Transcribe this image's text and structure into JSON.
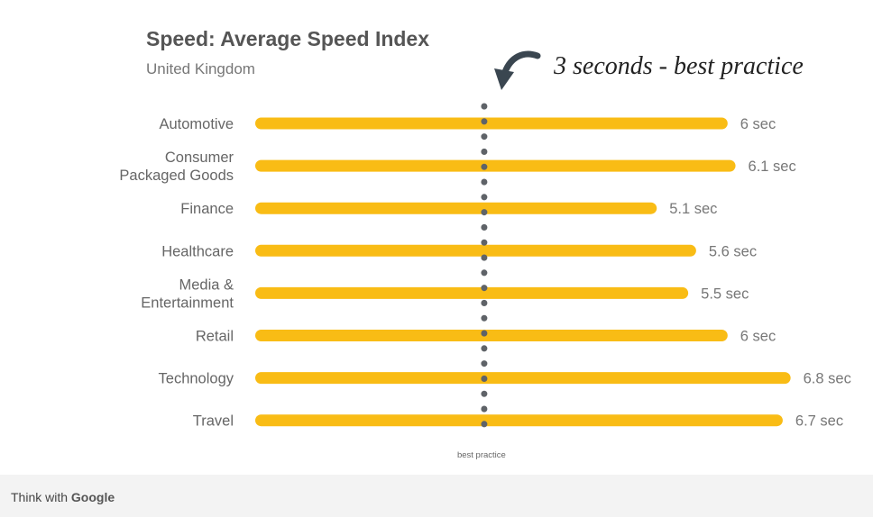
{
  "chart_data": {
    "type": "bar",
    "orientation": "horizontal",
    "title": "Speed: Average Speed Index",
    "subtitle": "United Kingdom",
    "categories": [
      [
        "Automotive"
      ],
      [
        "Consumer",
        "Packaged Goods"
      ],
      [
        "Finance"
      ],
      [
        "Healthcare"
      ],
      [
        "Media &",
        "Entertainment"
      ],
      [
        "Retail"
      ],
      [
        "Technology"
      ],
      [
        "Travel"
      ]
    ],
    "values": [
      6,
      6.1,
      5.1,
      5.6,
      5.5,
      6,
      6.8,
      6.7
    ],
    "value_labels": [
      "6 sec",
      "6.1 sec",
      "5.1 sec",
      "5.6 sec",
      "5.5 sec",
      "6 sec",
      "6.8 sec",
      "6.7 sec"
    ],
    "unit": "sec",
    "reference_line": {
      "value": 3,
      "label": "best practice"
    },
    "annotation": "3 seconds - best practice",
    "bar_color": "#F9BC15",
    "reference_line_color": "#5F6368",
    "grid": false,
    "legend": "none"
  },
  "footer": {
    "brand_prefix": "Think with",
    "brand_name": "Google"
  }
}
